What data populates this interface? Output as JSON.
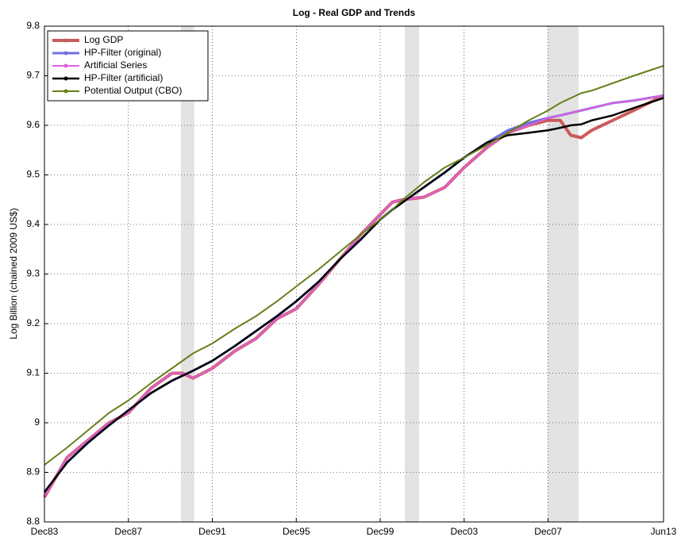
{
  "chart_data": {
    "type": "line",
    "title": "Log - Real GDP and Trends",
    "y_label": "Log Billion (chained 2009 US$)",
    "x": [
      1983.92,
      1985,
      1986,
      1987,
      1987.92,
      1989,
      1990,
      1990.5,
      1991,
      1991.92,
      1993,
      1994,
      1995,
      1995.92,
      1997,
      1998,
      1999,
      1999.92,
      2000.5,
      2001,
      2002,
      2003,
      2003.92,
      2005,
      2006,
      2007,
      2007.92,
      2008.5,
      2009,
      2009.5,
      2010,
      2011,
      2012,
      2013.42
    ],
    "series": [
      {
        "name": "Log GDP",
        "color": "#cc5a5a",
        "width": 4,
        "values": [
          8.85,
          8.93,
          8.965,
          9.0,
          9.02,
          9.07,
          9.1,
          9.1,
          9.09,
          9.11,
          9.145,
          9.17,
          9.21,
          9.23,
          9.28,
          9.33,
          9.38,
          9.42,
          9.445,
          9.45,
          9.455,
          9.475,
          9.515,
          9.555,
          9.585,
          9.6,
          9.61,
          9.61,
          9.58,
          9.575,
          9.59,
          9.61,
          9.63,
          9.66
        ]
      },
      {
        "name": "HP-Filter (original)",
        "color": "#7070e0",
        "width": 3,
        "values": [
          8.86,
          8.92,
          8.96,
          8.995,
          9.025,
          9.06,
          9.085,
          9.095,
          9.105,
          9.125,
          9.155,
          9.185,
          9.215,
          9.245,
          9.285,
          9.33,
          9.37,
          9.41,
          9.43,
          9.445,
          9.475,
          9.505,
          9.535,
          9.565,
          9.59,
          9.605,
          9.615,
          9.62,
          9.625,
          9.63,
          9.635,
          9.645,
          9.65,
          9.66
        ]
      },
      {
        "name": "Artificial Series",
        "color": "#e060e0",
        "width": 2,
        "values": [
          8.85,
          8.93,
          8.965,
          9.0,
          9.02,
          9.07,
          9.1,
          9.1,
          9.09,
          9.11,
          9.145,
          9.17,
          9.21,
          9.23,
          9.28,
          9.33,
          9.38,
          9.42,
          9.445,
          9.45,
          9.455,
          9.475,
          9.515,
          9.555,
          9.585,
          9.6,
          9.615,
          9.62,
          9.625,
          9.63,
          9.635,
          9.645,
          9.65,
          9.66
        ]
      },
      {
        "name": "HP-Filter (artificial)",
        "color": "#000000",
        "width": 2.5,
        "values": [
          8.86,
          8.92,
          8.96,
          8.995,
          9.025,
          9.06,
          9.085,
          9.095,
          9.105,
          9.125,
          9.155,
          9.185,
          9.215,
          9.245,
          9.285,
          9.33,
          9.37,
          9.41,
          9.43,
          9.445,
          9.475,
          9.505,
          9.535,
          9.565,
          9.58,
          9.585,
          9.59,
          9.595,
          9.6,
          9.602,
          9.61,
          9.62,
          9.635,
          9.655
        ]
      },
      {
        "name": "Potential Output (CBO)",
        "color": "#66801a",
        "width": 2,
        "values": [
          8.915,
          8.95,
          8.985,
          9.02,
          9.045,
          9.08,
          9.11,
          9.125,
          9.14,
          9.16,
          9.19,
          9.215,
          9.245,
          9.275,
          9.31,
          9.345,
          9.38,
          9.41,
          9.43,
          9.45,
          9.485,
          9.515,
          9.535,
          9.56,
          9.585,
          9.61,
          9.63,
          9.645,
          9.655,
          9.665,
          9.67,
          9.685,
          9.7,
          9.72
        ]
      }
    ],
    "recessions": [
      [
        1990.42,
        1991.06
      ],
      [
        2001.09,
        2001.77
      ],
      [
        2007.9,
        2009.37
      ]
    ],
    "xlim": [
      1983.92,
      2013.42
    ],
    "xticks": [
      {
        "value": 1983.92,
        "label": "Dec83"
      },
      {
        "value": 1987.92,
        "label": "Dec87"
      },
      {
        "value": 1991.92,
        "label": "Dec91"
      },
      {
        "value": 1995.92,
        "label": "Dec95"
      },
      {
        "value": 1999.92,
        "label": "Dec99"
      },
      {
        "value": 2003.92,
        "label": "Dec03"
      },
      {
        "value": 2007.92,
        "label": "Dec07"
      },
      {
        "value": 2013.42,
        "label": "Jun13"
      }
    ],
    "ylim": [
      8.8,
      9.8
    ],
    "yticks": [
      8.8,
      8.9,
      9,
      9.1,
      9.2,
      9.3,
      9.4,
      9.5,
      9.6,
      9.7,
      9.8
    ],
    "grid": true,
    "legend": "upper left"
  }
}
